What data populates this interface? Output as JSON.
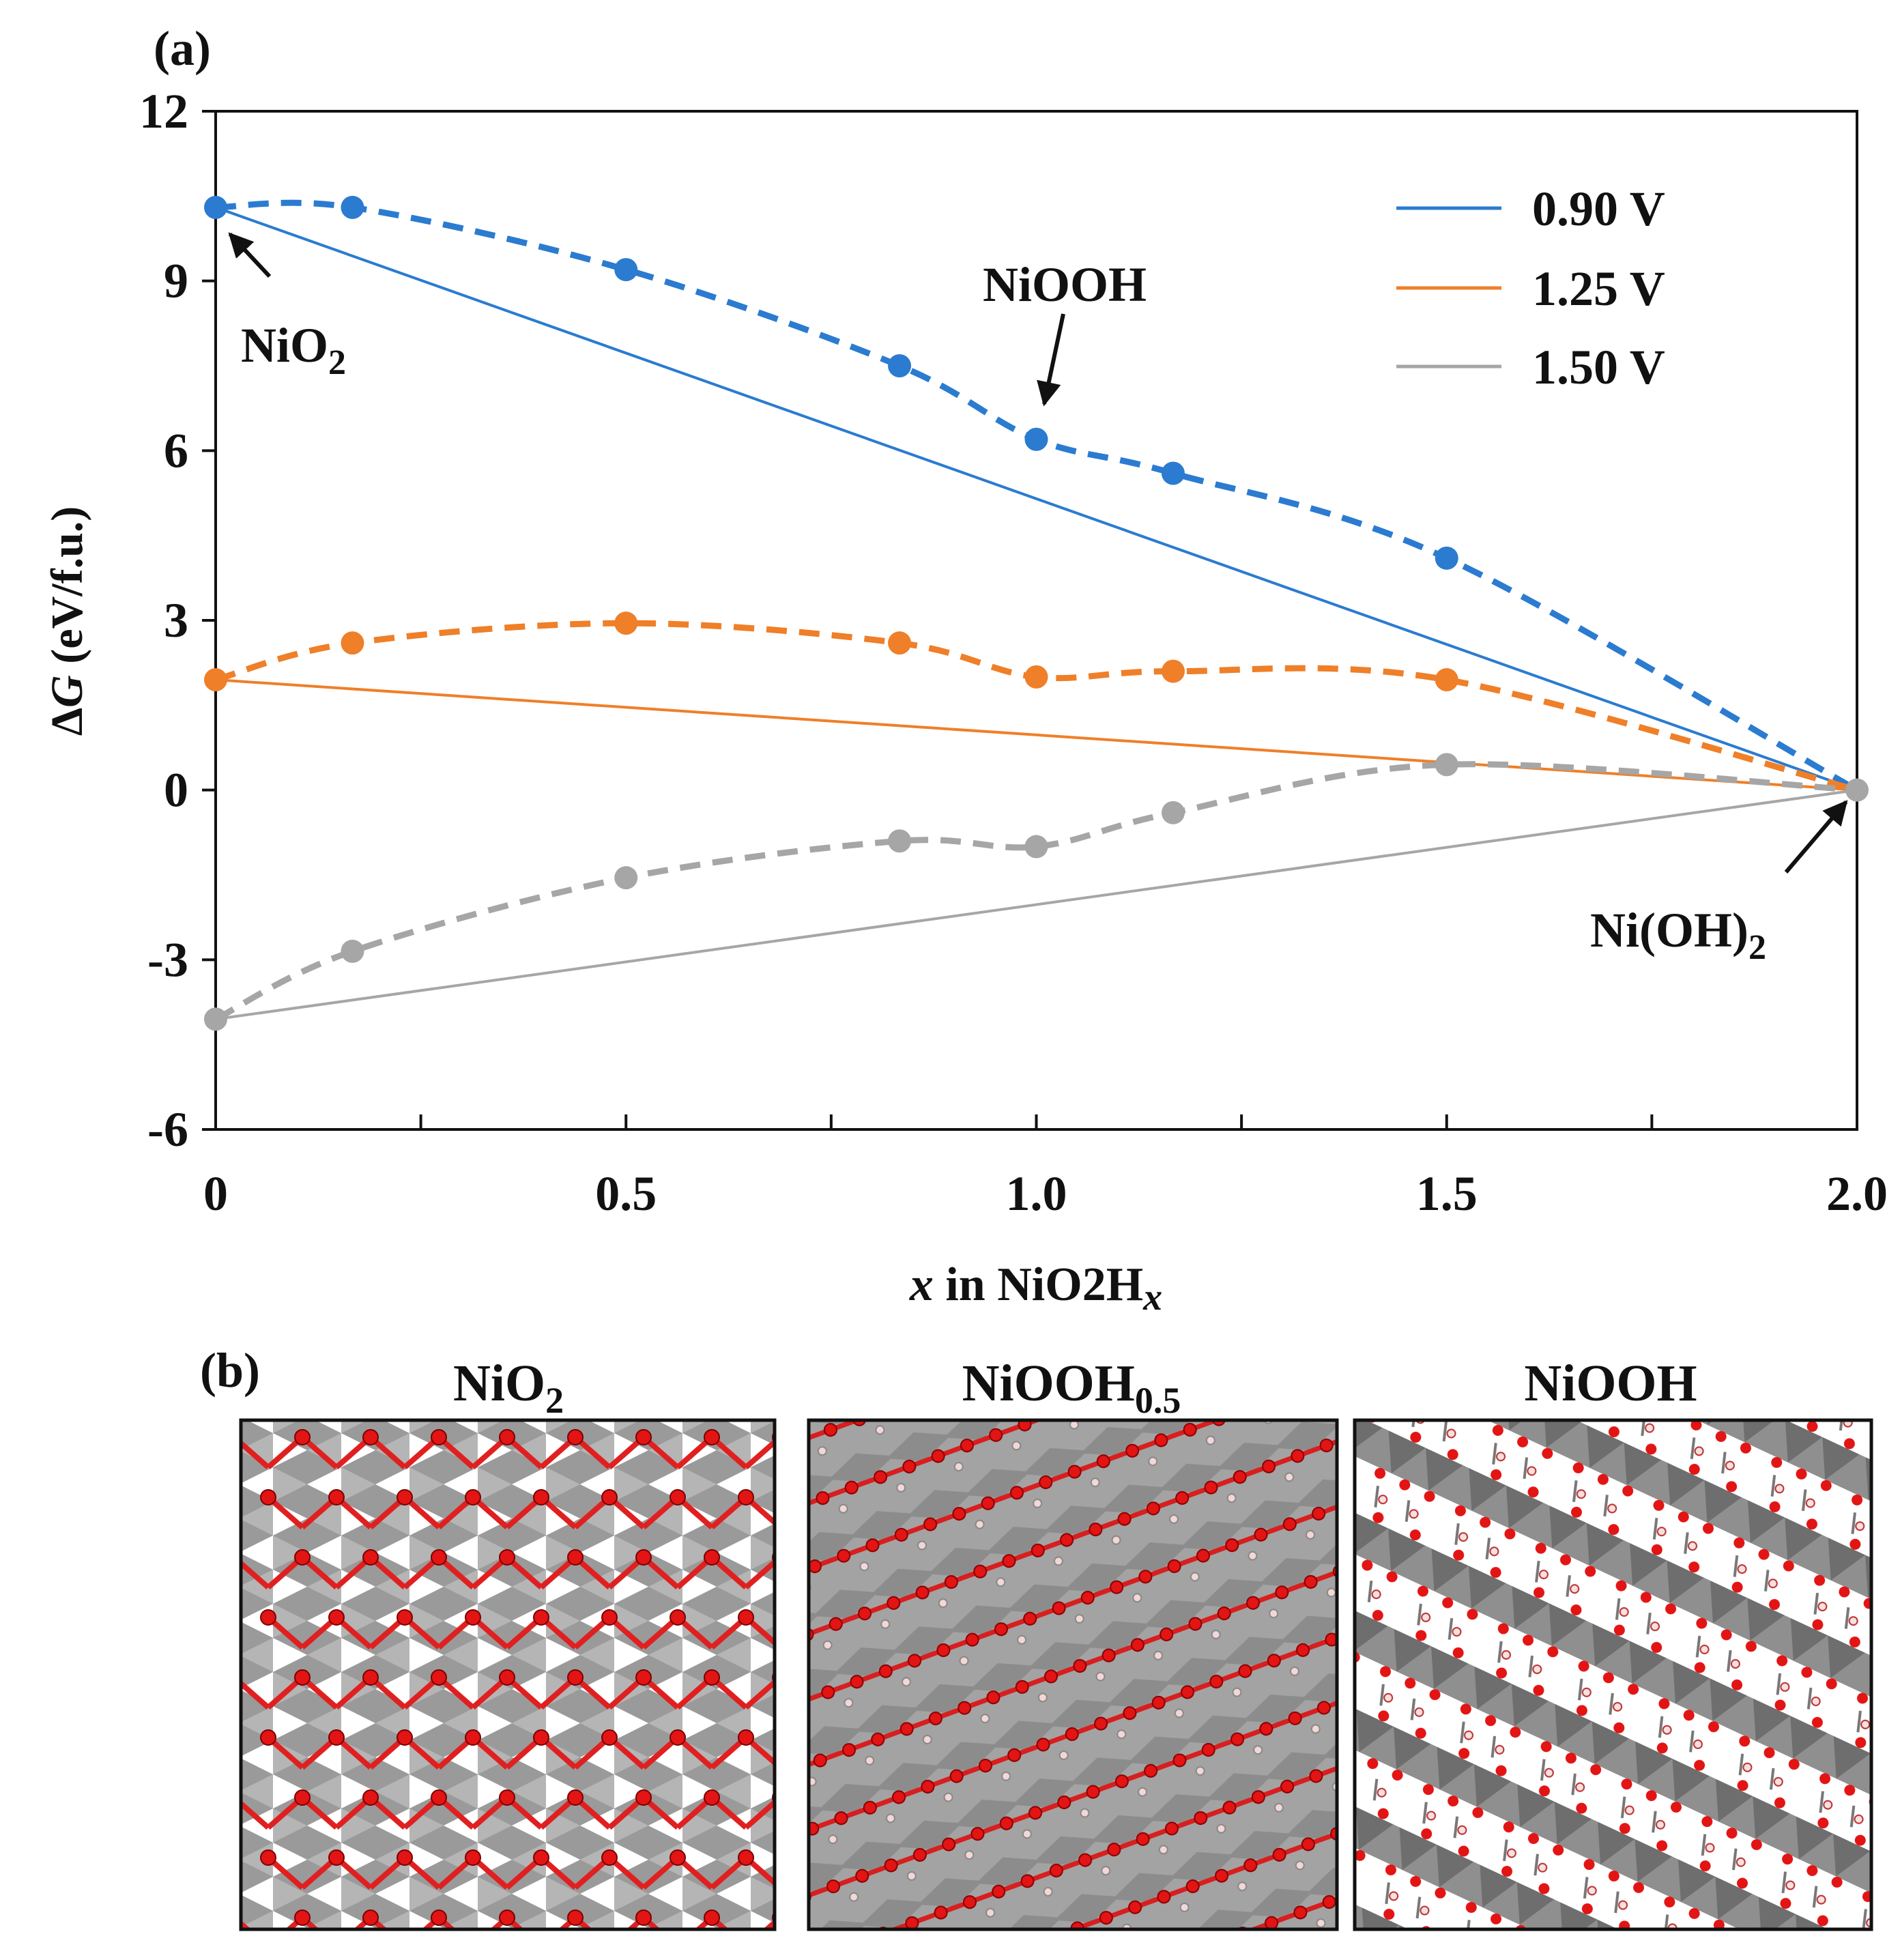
{
  "panel_a_label": "(a)",
  "panel_b_label": "(b)",
  "chart_data": {
    "type": "line",
    "title": "",
    "xlabel": {
      "prefix": "x",
      "middle": " in NiO",
      "sub1": "2",
      "mid2": "H",
      "sub2": "x"
    },
    "ylabel": {
      "delta": "Δ",
      "var": "G",
      "rest": " (eV/f.u.)"
    },
    "xlim": [
      0,
      2.0
    ],
    "ylim": [
      -6,
      12
    ],
    "xticks": [
      0,
      0.25,
      0.5,
      0.75,
      1.0,
      1.25,
      1.5,
      1.75,
      2.0
    ],
    "xticklabels": [
      {
        "value": 0,
        "label": "0"
      },
      {
        "value": 0.5,
        "label": "0.5"
      },
      {
        "value": 1.0,
        "label": "1.0"
      },
      {
        "value": 1.5,
        "label": "1.5"
      },
      {
        "value": 2.0,
        "label": "2.0"
      }
    ],
    "yticks": [
      {
        "value": 12,
        "label": "12"
      },
      {
        "value": 9,
        "label": "9"
      },
      {
        "value": 6,
        "label": "6"
      },
      {
        "value": 3,
        "label": "3"
      },
      {
        "value": 0,
        "label": "0"
      },
      {
        "value": -3,
        "label": "-3"
      },
      {
        "value": -6,
        "label": "-6"
      }
    ],
    "grid": false,
    "legend_position": "top-right",
    "series": [
      {
        "name": "0.90 V",
        "color": "#2b7bd0",
        "x": [
          0,
          0.1667,
          0.5,
          0.8333,
          1.0,
          1.1667,
          1.5,
          2.0
        ],
        "y": [
          10.3,
          10.3,
          9.2,
          7.5,
          6.2,
          5.6,
          4.1,
          0
        ],
        "hull": [
          [
            0,
            10.3
          ],
          [
            2.0,
            0
          ]
        ]
      },
      {
        "name": "1.25 V",
        "color": "#ef7f28",
        "x": [
          0,
          0.1667,
          0.5,
          0.8333,
          1.0,
          1.1667,
          1.5,
          2.0
        ],
        "y": [
          1.95,
          2.6,
          2.95,
          2.6,
          2.0,
          2.1,
          1.95,
          0
        ],
        "hull": [
          [
            0,
            1.95
          ],
          [
            2.0,
            0
          ]
        ]
      },
      {
        "name": "1.50 V",
        "color": "#a6a6a6",
        "x": [
          0,
          0.1667,
          0.5,
          0.8333,
          1.0,
          1.1667,
          1.5,
          2.0
        ],
        "y": [
          -4.05,
          -2.85,
          -1.55,
          -0.9,
          -1.0,
          -0.4,
          0.45,
          0
        ],
        "hull": [
          [
            0,
            -4.05
          ],
          [
            2.0,
            0
          ]
        ]
      }
    ],
    "annotations": [
      {
        "text": "NiO",
        "sub": "2",
        "x": 0,
        "y": 10.3
      },
      {
        "text": "NiOOH",
        "sub": "",
        "x": 1.0,
        "y": 6.2
      },
      {
        "text": "Ni(OH)",
        "sub": "2",
        "x": 2.0,
        "y": 0
      }
    ]
  },
  "structures": [
    {
      "title": "NiO",
      "sub": "2"
    },
    {
      "title": "NiOOH",
      "sub": "0.5"
    },
    {
      "title": "NiOOH",
      "sub": ""
    }
  ]
}
